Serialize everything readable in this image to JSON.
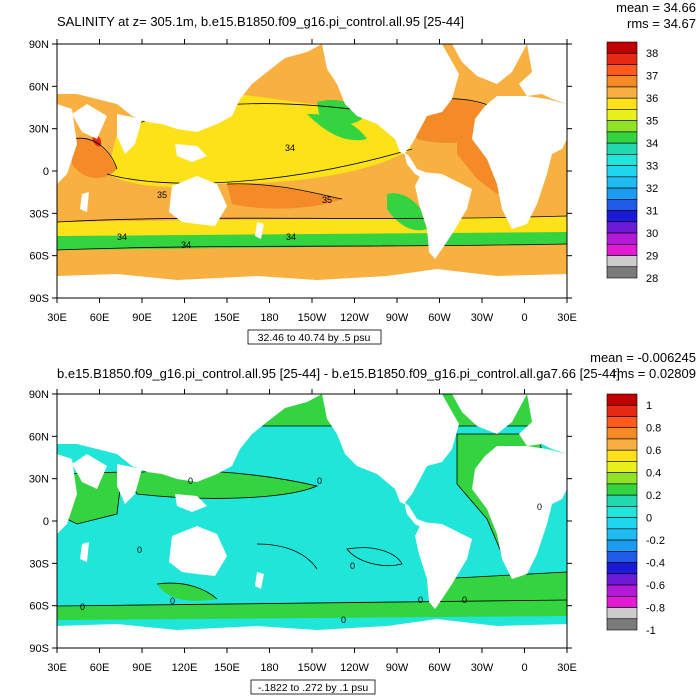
{
  "panels": [
    {
      "title": "SALINITY at z= 305.1m, b.e15.B1850.f09_g16.pi_control.all.95 [25-44]",
      "mean_text": "mean = 34.66",
      "rms_text": "rms = 34.67",
      "range_text": "32.46 to 40.74 by .5 psu",
      "colorbar": {
        "labels": [
          "38",
          "37",
          "36",
          "35",
          "34",
          "33",
          "32",
          "31",
          "30",
          "29",
          "28"
        ],
        "colors": [
          "#c00000",
          "#e62a12",
          "#ff5a1e",
          "#f58b26",
          "#f8b040",
          "#fde21a",
          "#e9f01a",
          "#8fe226",
          "#34d440",
          "#22d8b0",
          "#1fe6d8",
          "#21d6f0",
          "#1ebcf0",
          "#1c9cf0",
          "#1f5ae8",
          "#1a1ad6",
          "#6b1ad6",
          "#b21ad6",
          "#e21ad6",
          "#cccccc",
          "#7a7a7a"
        ]
      },
      "contour_labels": [
        "34",
        "35",
        "35",
        "34",
        "34",
        "34"
      ]
    },
    {
      "title": "b.e15.B1850.f09_g16.pi_control.all.95 [25-44] - b.e15.B1850.f09_g16.pi_control.all.ga7.66 [25-44]",
      "mean_text": "mean = -0.006245",
      "rms_text": "rms = 0.02809",
      "range_text": "-.1822 to .272 by .1 psu",
      "colorbar": {
        "labels": [
          "1",
          "0.8",
          "0.6",
          "0.4",
          "0.2",
          "0",
          "-0.2",
          "-0.4",
          "-0.6",
          "-0.8",
          "-1"
        ],
        "colors": [
          "#c00000",
          "#e62a12",
          "#ff5a1e",
          "#f58b26",
          "#f8b040",
          "#fde21a",
          "#e9f01a",
          "#8fe226",
          "#34d440",
          "#22d8b0",
          "#1fe6d8",
          "#21d6f0",
          "#1ebcf0",
          "#1c9cf0",
          "#1f5ae8",
          "#1a1ad6",
          "#6b1ad6",
          "#b21ad6",
          "#e21ad6",
          "#cccccc",
          "#7a7a7a"
        ]
      },
      "contour_labels": [
        "0",
        "0",
        "0",
        "0",
        "0",
        "0",
        "0",
        "0",
        "0",
        "0"
      ]
    }
  ],
  "axes": {
    "lat_labels": [
      "90N",
      "60N",
      "30N",
      "0",
      "30S",
      "60S",
      "90S"
    ],
    "lon_labels": [
      "30E",
      "60E",
      "90E",
      "120E",
      "150E",
      "180",
      "150W",
      "120W",
      "90W",
      "60W",
      "30W",
      "0",
      "30E"
    ]
  },
  "colors": {
    "land": "#ffffff",
    "top_base": "#f8b040",
    "top_yellow": "#fde21a",
    "top_orange": "#f58b26",
    "top_red": "#e62a12",
    "top_green": "#34d440",
    "diff_green": "#34d440",
    "diff_cyan": "#1fe6d8"
  }
}
